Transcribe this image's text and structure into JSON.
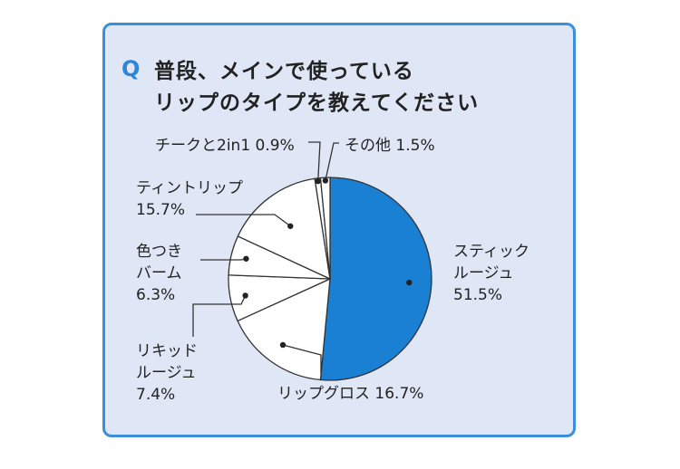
{
  "colors": {
    "card_bg": "#dfe7f6",
    "card_border": "#3b8fd8",
    "accent": "#1a80d4",
    "slice_white": "#ffffff"
  },
  "header": {
    "q_mark": "Q",
    "title_line1": "普段、メインで使っている",
    "title_line2": "リップのタイプを教えてください"
  },
  "chart_data": {
    "type": "pie",
    "categories": [
      "スティックルージュ",
      "リップグロス",
      "リキッドルージュ",
      "色つきバーム",
      "ティントリップ",
      "チークと2in1",
      "その他"
    ],
    "values": [
      51.5,
      16.7,
      7.4,
      6.3,
      15.7,
      0.9,
      1.5
    ],
    "title": "普段、メインで使っているリップのタイプを教えてください",
    "labels": [
      {
        "lines": [
          "スティック",
          "ルージュ",
          "51.5%"
        ]
      },
      {
        "lines": [
          "リップグロス 16.7%"
        ]
      },
      {
        "lines": [
          "リキッド",
          "ルージュ",
          "7.4%"
        ]
      },
      {
        "lines": [
          "色つき",
          "バーム",
          "6.3%"
        ]
      },
      {
        "lines": [
          "ティントリップ",
          "15.7%"
        ]
      },
      {
        "lines": [
          "チークと2in1 0.9%"
        ]
      },
      {
        "lines": [
          "その他 1.5%"
        ]
      }
    ]
  }
}
